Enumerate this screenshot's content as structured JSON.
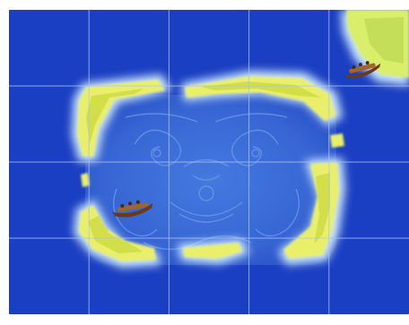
{
  "board": {
    "colors": {
      "ocean": "#1b3fc2",
      "ocean_deep": "#1736b3",
      "lagoon": "#3f73d9",
      "island_fill": "#e9ef6a",
      "island_core": "#c9d83c",
      "shore_glow": "#d6f1ff",
      "grid_line": "#aac4f2",
      "corner_land": "#d9ee6a",
      "boat_hull": "#6a3a1a",
      "boat_deck": "#a0642e"
    },
    "grid": {
      "columns": 5,
      "rows": 4
    },
    "tiles": [
      {
        "id": "r0c0"
      },
      {
        "id": "r0c1"
      },
      {
        "id": "r0c2"
      },
      {
        "id": "r0c3"
      },
      {
        "id": "r0c4"
      },
      {
        "id": "r1c0"
      },
      {
        "id": "r1c1"
      },
      {
        "id": "r1c2"
      },
      {
        "id": "r1c3"
      },
      {
        "id": "r1c4"
      },
      {
        "id": "r2c0"
      },
      {
        "id": "r2c1"
      },
      {
        "id": "r2c2"
      },
      {
        "id": "r2c3"
      },
      {
        "id": "r2c4"
      },
      {
        "id": "r3c0"
      },
      {
        "id": "r3c1"
      },
      {
        "id": "r3c2"
      },
      {
        "id": "r3c3"
      },
      {
        "id": "r3c4"
      }
    ],
    "pieces": [
      {
        "name": "canoe-piece",
        "icon": "canoe-icon"
      },
      {
        "name": "canoe-piece",
        "icon": "canoe-icon"
      }
    ],
    "decor": {
      "lagoon_icon": "tiki-face-icon",
      "corner_icon": "island-corner-icon"
    }
  }
}
